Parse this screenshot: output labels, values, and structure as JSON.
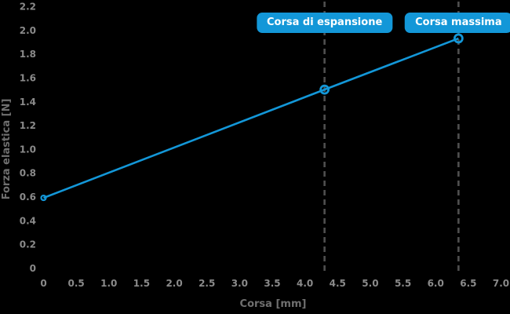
{
  "chart_data": {
    "type": "line",
    "title": "",
    "xlabel": "Corsa [mm]",
    "ylabel": "Forza elastica [N]",
    "xlim": [
      0,
      7.0
    ],
    "ylim": [
      0,
      2.2
    ],
    "grid": false,
    "legend": null,
    "x_tick_values": [
      0,
      0.5,
      1.0,
      1.5,
      2.0,
      2.5,
      3.0,
      3.5,
      4.0,
      4.5,
      5.0,
      5.5,
      6.0,
      6.5,
      7.0
    ],
    "x_tick_labels": [
      "0",
      "0.5",
      "1.0",
      "1.5",
      "2.0",
      "2.5",
      "3.0",
      "3.5",
      "4.0",
      "4.5",
      "5.0",
      "5.5",
      "6.0",
      "6.5",
      "7.0"
    ],
    "y_tick_values": [
      0,
      0.2,
      0.4,
      0.6,
      0.8,
      1.0,
      1.2,
      1.4,
      1.6,
      1.8,
      2.0,
      2.2
    ],
    "y_tick_labels": [
      "0",
      "0.2",
      "0.4",
      "0.6",
      "0.8",
      "1.0",
      "1.2",
      "1.4",
      "1.6",
      "1.8",
      "2.0",
      "2.2"
    ],
    "series": [
      {
        "name": "forza-elastica",
        "x": [
          0,
          4.3,
          6.35
        ],
        "y": [
          0.59,
          1.5,
          1.93
        ],
        "color": "#1397d8",
        "marker": "open-circle"
      }
    ],
    "reference_lines": [
      {
        "x": 4.3,
        "label": "Corsa di espansione"
      },
      {
        "x": 6.35,
        "label": "Corsa massima"
      }
    ],
    "colors": {
      "background": "#000000",
      "accent_blue": "#1397d8",
      "tick_label": "#8a8a8a",
      "axis_title": "#6f6f6f",
      "dashed_line": "#4f4f4f",
      "annotation_text": "#ffffff"
    }
  }
}
